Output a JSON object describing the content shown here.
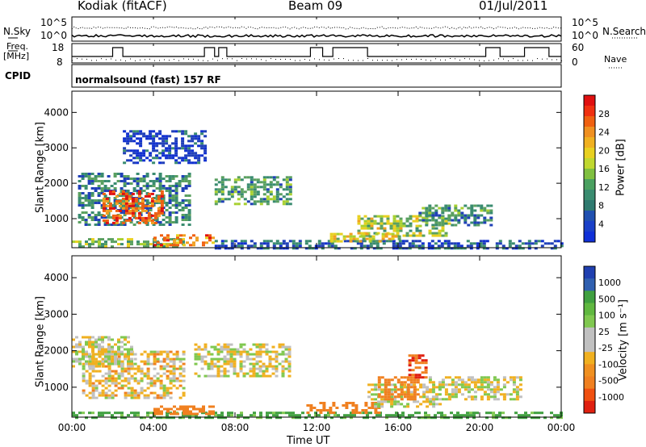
{
  "header": {
    "station": "Kodiak (fitACF)",
    "beam": "Beam 09",
    "date": "01/Jul/2011"
  },
  "top_panels": {
    "nsky_label": "N.Sky",
    "nsearch_label": "N.Search",
    "freq_label": "Freq.",
    "freq_unit": "[MHz]",
    "nave_label": "Nave",
    "cpid_label": "CPID",
    "cpid_value": "normalsound (fast) 157 RF",
    "noise_ticks": [
      "10^5",
      "10^0"
    ],
    "freq_ticks": [
      "18",
      "8"
    ],
    "nave_ticks": [
      "60",
      "0"
    ]
  },
  "colorbars": {
    "power": {
      "label": "Power [dB]",
      "ticks": [
        "28",
        "24",
        "20",
        "16",
        "12",
        "8",
        "4"
      ]
    },
    "velocity": {
      "label": "Velocity [m s⁻¹]",
      "ticks": [
        "1000",
        "500",
        "100",
        "25",
        "-25",
        "-100",
        "-500",
        "-1000"
      ]
    }
  },
  "chart_data": [
    {
      "type": "heatmap",
      "title": "",
      "xlabel": "Time UT",
      "ylabel": "Slant Range [km]",
      "colorbar": "Power [dB]",
      "xlim": [
        "00:00",
        "24:00"
      ],
      "ylim": [
        180,
        4600
      ],
      "xticks": [
        "00:00",
        "04:00",
        "08:00",
        "12:00",
        "16:00",
        "20:00",
        "00:00"
      ],
      "yticks": [
        1000,
        2000,
        3000,
        4000
      ],
      "clim": [
        0,
        30
      ],
      "patches": [
        {
          "t0": 0.0,
          "t1": 5.5,
          "r0": 180,
          "r1": 450,
          "v": 16
        },
        {
          "t0": 4.0,
          "t1": 7.0,
          "r0": 280,
          "r1": 560,
          "v": 26
        },
        {
          "t0": 7.0,
          "t1": 24.0,
          "r0": 180,
          "r1": 400,
          "v": 9
        },
        {
          "t0": 0.3,
          "t1": 5.8,
          "r0": 800,
          "r1": 2300,
          "v": 12
        },
        {
          "t0": 1.5,
          "t1": 4.5,
          "r0": 900,
          "r1": 1800,
          "v": 27
        },
        {
          "t0": 7.0,
          "t1": 10.7,
          "r0": 1400,
          "r1": 2200,
          "v": 14
        },
        {
          "t0": 2.5,
          "t1": 6.5,
          "r0": 2600,
          "r1": 3500,
          "v": 6
        },
        {
          "t0": 14.0,
          "t1": 18.5,
          "r0": 550,
          "r1": 1100,
          "v": 18
        },
        {
          "t0": 17.0,
          "t1": 20.5,
          "r0": 800,
          "r1": 1400,
          "v": 13
        },
        {
          "t0": 12.5,
          "t1": 16.0,
          "r0": 350,
          "r1": 600,
          "v": 20
        }
      ]
    },
    {
      "type": "heatmap",
      "title": "",
      "xlabel": "Time UT",
      "ylabel": "Slant Range [km]",
      "colorbar": "Velocity [m s⁻¹]",
      "xlim": [
        "00:00",
        "24:00"
      ],
      "ylim": [
        180,
        4600
      ],
      "xticks": [
        "00:00",
        "04:00",
        "08:00",
        "12:00",
        "16:00",
        "20:00",
        "00:00"
      ],
      "yticks": [
        1000,
        2000,
        3000,
        4000
      ],
      "clim": [
        -1000,
        1000
      ],
      "patches": [
        {
          "t0": 0.0,
          "t1": 24.0,
          "r0": 180,
          "r1": 330,
          "v": 150
        },
        {
          "t0": 0.5,
          "t1": 5.5,
          "r0": 700,
          "r1": 2000,
          "v": -40
        },
        {
          "t0": 4.0,
          "t1": 7.0,
          "r0": 250,
          "r1": 500,
          "v": -200
        },
        {
          "t0": 6.0,
          "t1": 10.7,
          "r0": 1300,
          "r1": 2200,
          "v": 0
        },
        {
          "t0": 0.0,
          "t1": 3.0,
          "r0": 1600,
          "r1": 2400,
          "v": 0
        },
        {
          "t0": 11.5,
          "t1": 15.0,
          "r0": 300,
          "r1": 600,
          "v": -200
        },
        {
          "t0": 14.5,
          "t1": 18.0,
          "r0": 500,
          "r1": 1100,
          "v": 0
        },
        {
          "t0": 15.0,
          "t1": 17.0,
          "r0": 700,
          "r1": 1300,
          "v": -300
        },
        {
          "t0": 16.5,
          "t1": 17.3,
          "r0": 1300,
          "r1": 1900,
          "v": -500
        },
        {
          "t0": 17.5,
          "t1": 22.0,
          "r0": 700,
          "r1": 1300,
          "v": 0
        }
      ]
    }
  ]
}
